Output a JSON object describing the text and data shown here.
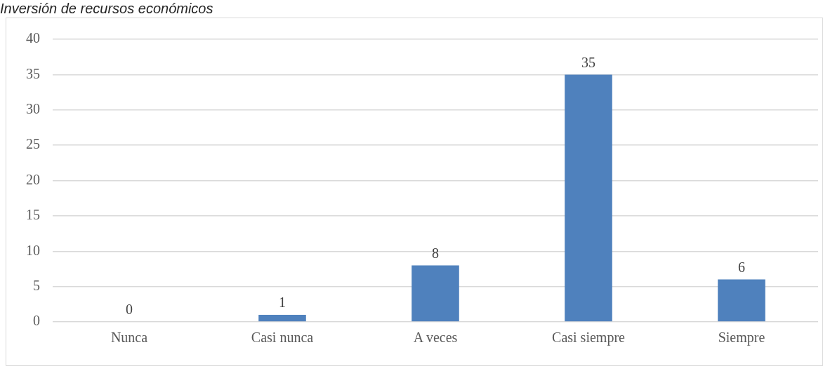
{
  "chart_data": {
    "type": "bar",
    "title": "Inversión de recursos económicos",
    "categories": [
      "Nunca",
      "Casi nunca",
      "A veces",
      "Casi siempre",
      "Siempre"
    ],
    "values": [
      0,
      1,
      8,
      35,
      6
    ],
    "color": "#4f81bd",
    "ylim": [
      0,
      40
    ],
    "yticks": [
      0,
      5,
      10,
      15,
      20,
      25,
      30,
      35,
      40
    ],
    "grid": "y",
    "data_labels": true
  }
}
